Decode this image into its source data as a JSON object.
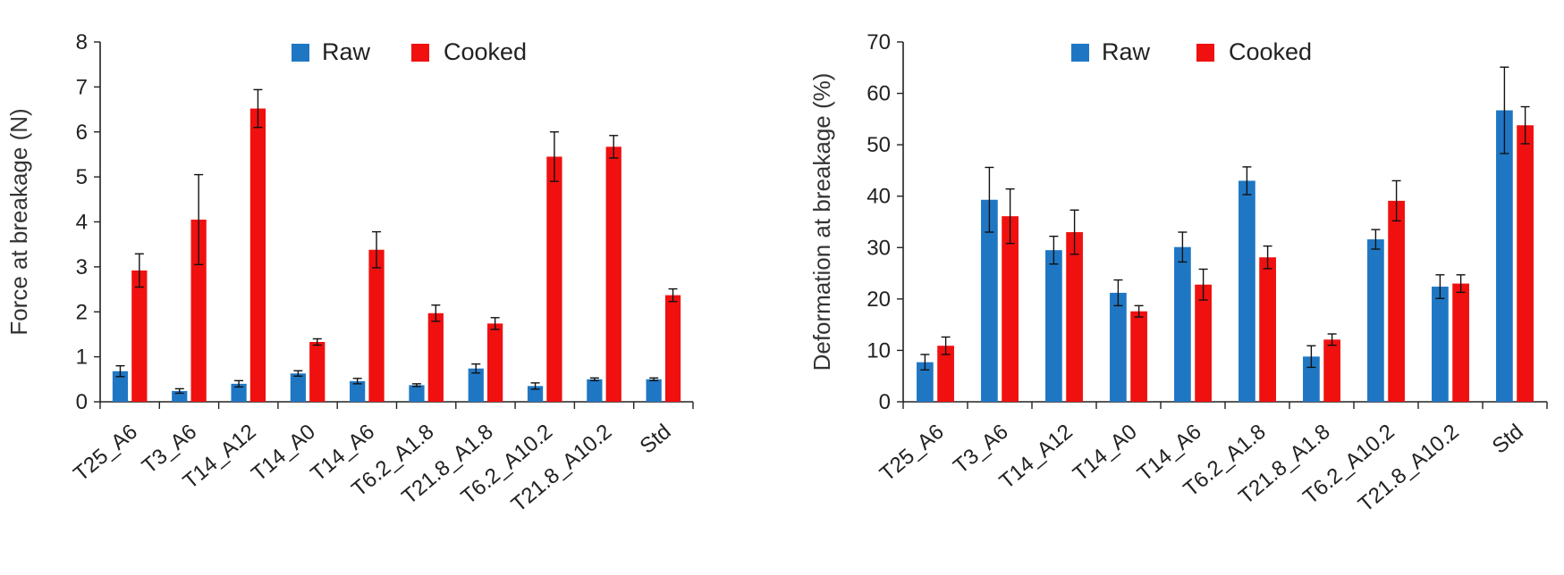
{
  "colors": {
    "raw": "#1f77c4",
    "cooked": "#f01010",
    "axis": "#222222",
    "error": "#111111"
  },
  "legend_labels": {
    "raw": "Raw",
    "cooked": "Cooked"
  },
  "chart_data": [
    {
      "type": "bar",
      "title": "",
      "xlabel": "",
      "ylabel": "Force at breakage (N)",
      "ylim": [
        0,
        8
      ],
      "yticks": [
        "0",
        "1",
        "2",
        "3",
        "4",
        "5",
        "6",
        "7",
        "8"
      ],
      "categories": [
        "T25_A6",
        "T3_A6",
        "T14_A12",
        "T14_A0",
        "T14_A6",
        "T6.2_A1.8",
        "T21.8_A1.8",
        "T6.2_A10.2",
        "T21.8_A10.2",
        "Std"
      ],
      "legend_position": "top-center",
      "grid": false,
      "series": [
        {
          "name": "Raw",
          "values": [
            0.68,
            0.24,
            0.4,
            0.63,
            0.46,
            0.37,
            0.74,
            0.35,
            0.5,
            0.5
          ],
          "errors": [
            0.12,
            0.05,
            0.07,
            0.06,
            0.06,
            0.03,
            0.1,
            0.07,
            0.03,
            0.03
          ]
        },
        {
          "name": "Cooked",
          "values": [
            2.92,
            4.05,
            6.52,
            1.33,
            3.38,
            1.97,
            1.74,
            5.45,
            5.67,
            2.37
          ],
          "errors": [
            0.37,
            1.0,
            0.42,
            0.07,
            0.4,
            0.18,
            0.13,
            0.55,
            0.25,
            0.14
          ]
        }
      ]
    },
    {
      "type": "bar",
      "title": "",
      "xlabel": "",
      "ylabel": "Deformation at breakage (%)",
      "ylim": [
        0,
        70
      ],
      "yticks": [
        "0",
        "10",
        "20",
        "30",
        "40",
        "50",
        "60",
        "70"
      ],
      "categories": [
        "T25_A6",
        "T3_A6",
        "T14_A12",
        "T14_A0",
        "T14_A6",
        "T6.2_A1.8",
        "T21.8_A1.8",
        "T6.2_A10.2",
        "T21.8_A10.2",
        "Std"
      ],
      "legend_position": "top-center",
      "grid": false,
      "series": [
        {
          "name": "Raw",
          "values": [
            7.7,
            39.3,
            29.5,
            21.2,
            30.1,
            43.0,
            8.8,
            31.6,
            22.4,
            56.7
          ],
          "errors": [
            1.5,
            6.3,
            2.7,
            2.5,
            2.9,
            2.7,
            2.1,
            1.9,
            2.3,
            8.4
          ]
        },
        {
          "name": "Cooked",
          "values": [
            10.9,
            36.1,
            33.0,
            17.6,
            22.8,
            28.1,
            12.1,
            39.1,
            23.0,
            53.8
          ],
          "errors": [
            1.7,
            5.3,
            4.3,
            1.1,
            3.0,
            2.2,
            1.1,
            3.9,
            1.7,
            3.6
          ]
        }
      ]
    }
  ]
}
